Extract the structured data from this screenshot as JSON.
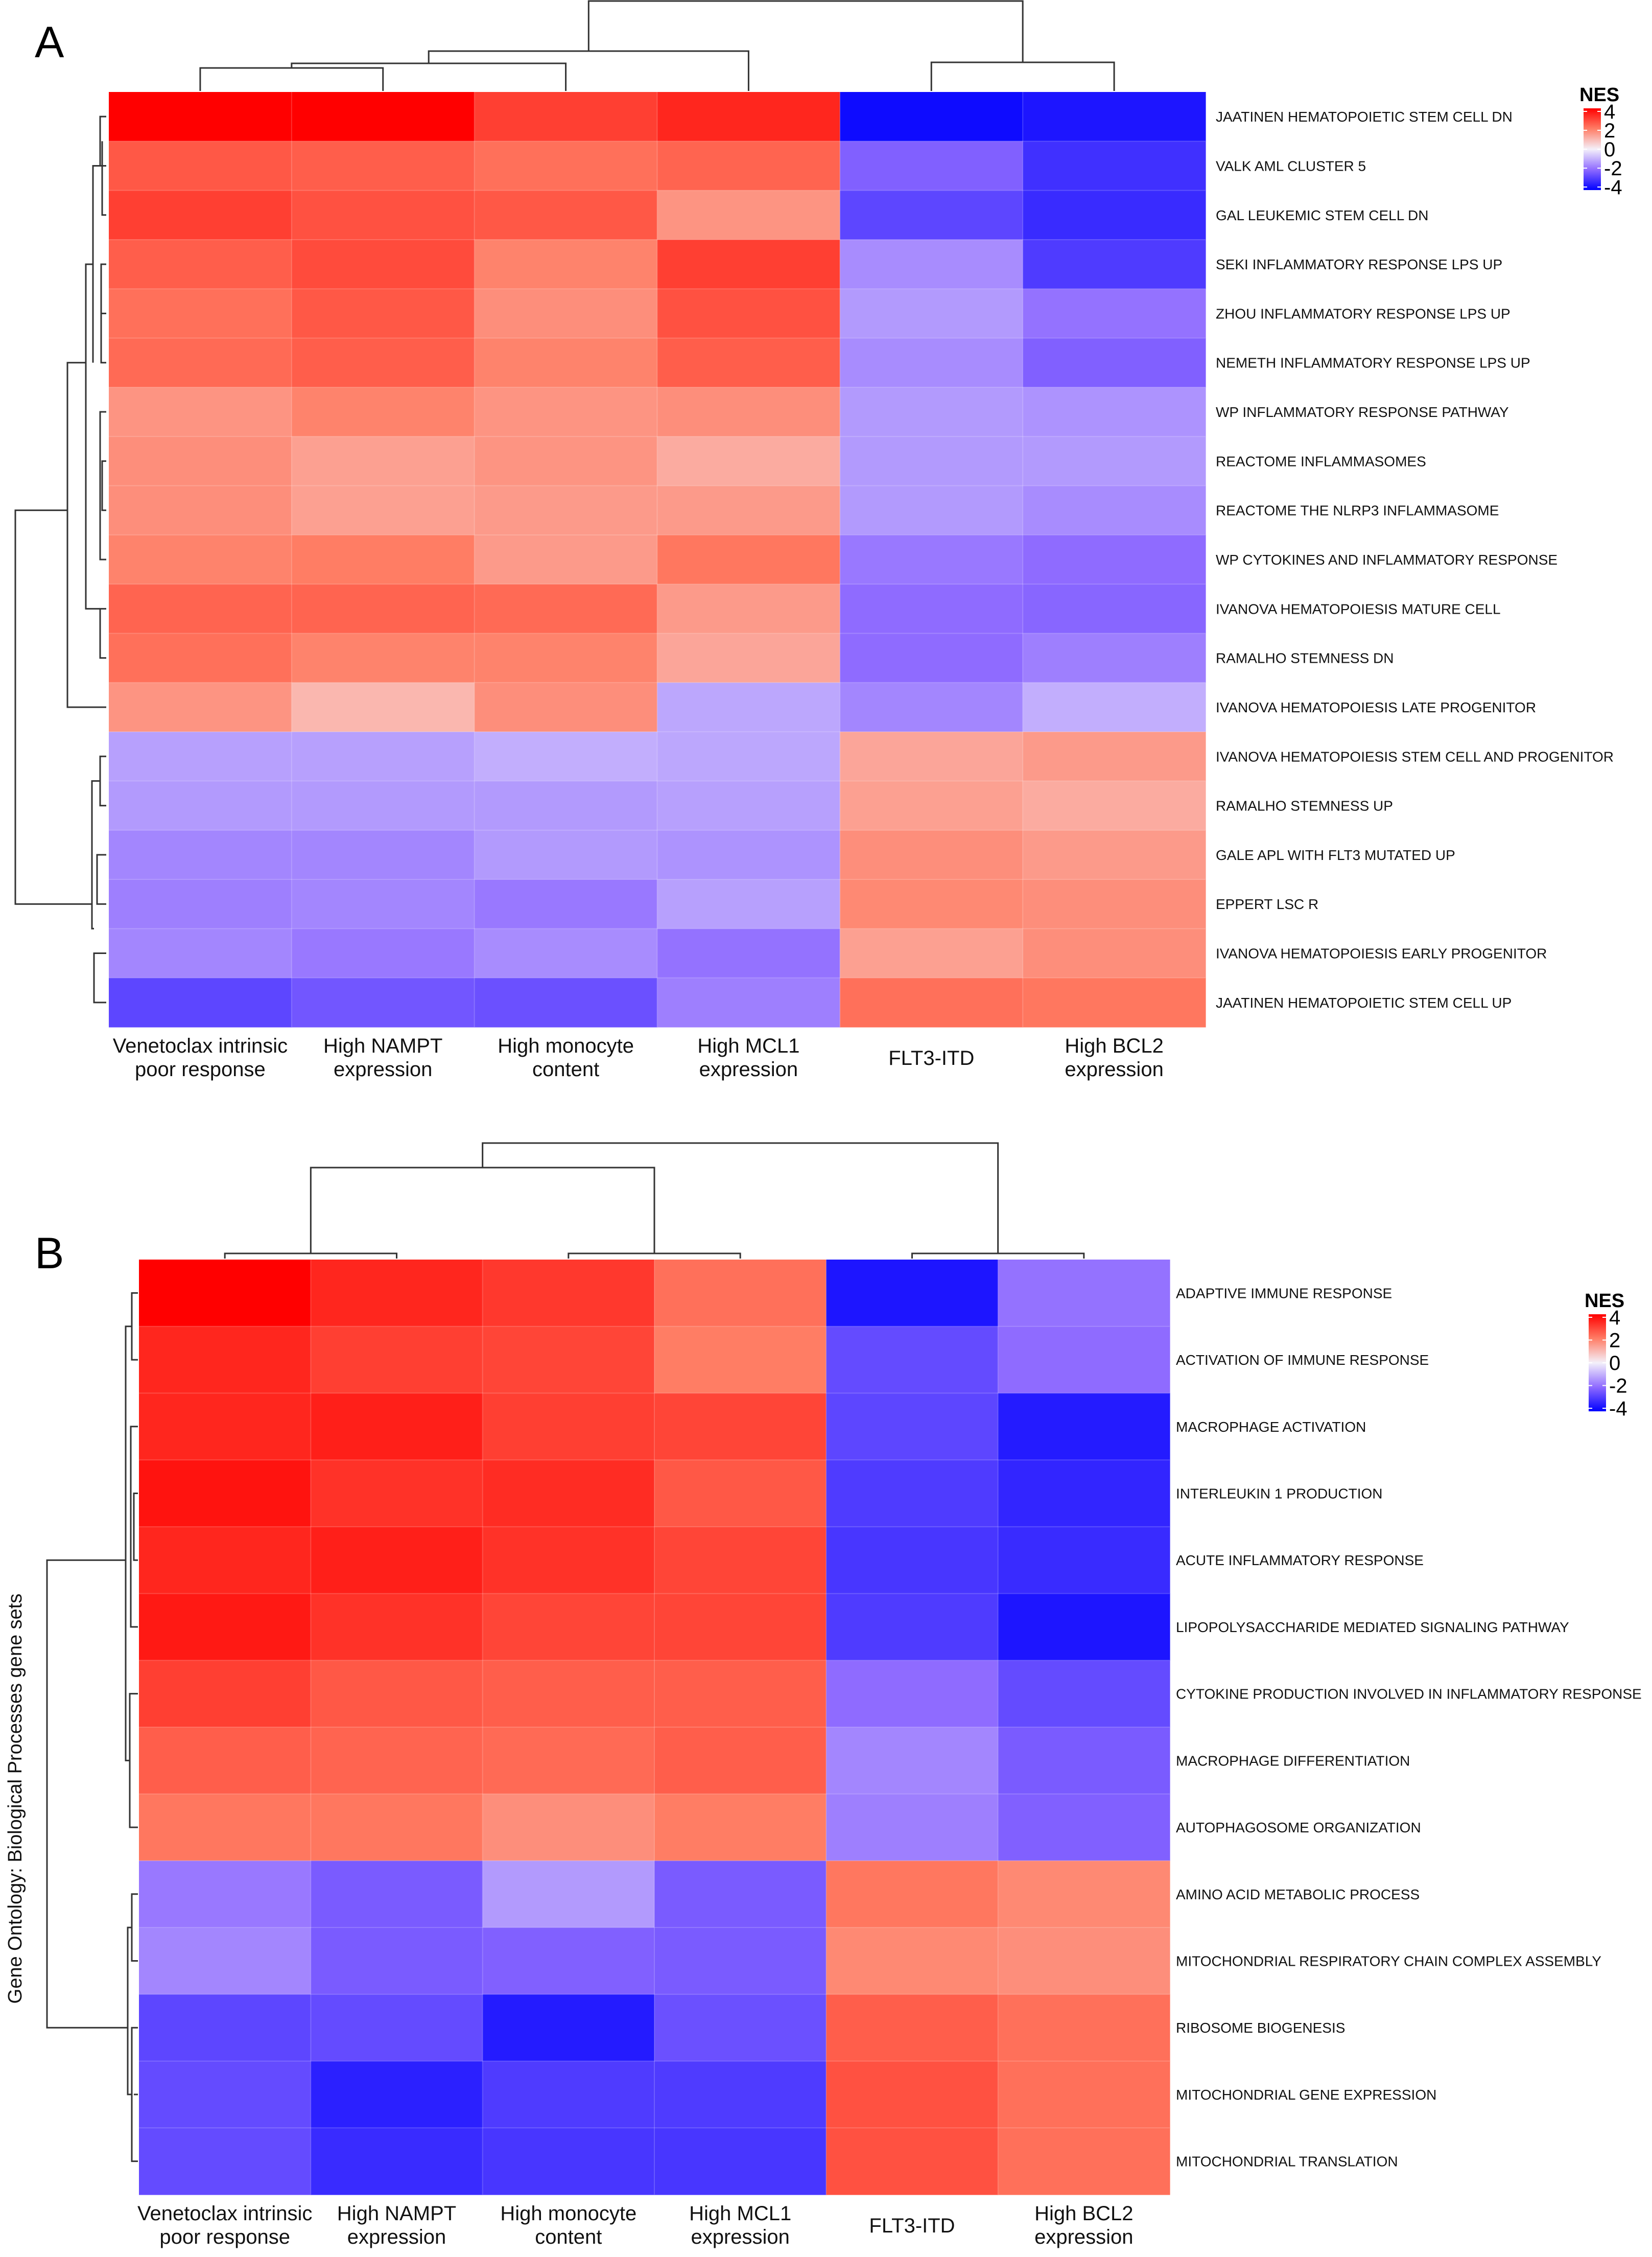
{
  "chart_data": [
    {
      "type": "heatmap",
      "panel": "A",
      "title": "",
      "ylabel": "",
      "columns": [
        "Venetoclax intrinsic\npoor response",
        "High NAMPT\nexpression",
        "High monocyte\ncontent",
        "High MCL1\nexpression",
        "FLT3-ITD",
        "High BCL2\nexpression"
      ],
      "rows": [
        "JAATINEN HEMATOPOIETIC STEM CELL DN",
        "VALK AML CLUSTER 5",
        "GAL LEUKEMIC STEM CELL DN",
        "SEKI INFLAMMATORY RESPONSE LPS UP",
        "ZHOU INFLAMMATORY RESPONSE LPS UP",
        "NEMETH INFLAMMATORY RESPONSE LPS UP",
        "WP INFLAMMATORY RESPONSE PATHWAY",
        "REACTOME INFLAMMASOMES",
        "REACTOME THE NLRP3 INFLAMMASOME",
        "WP CYTOKINES AND INFLAMMATORY RESPONSE",
        "IVANOVA HEMATOPOIESIS MATURE CELL",
        "RAMALHO STEMNESS DN",
        "IVANOVA HEMATOPOIESIS LATE PROGENITOR",
        "IVANOVA HEMATOPOIESIS STEM CELL AND PROGENITOR",
        "RAMALHO STEMNESS UP",
        "GALE APL WITH FLT3 MUTATED UP",
        "EPPERT LSC R",
        "IVANOVA HEMATOPOIESIS EARLY PROGENITOR",
        "JAATINEN HEMATOPOIETIC STEM CELL UP"
      ],
      "values": [
        [
          4.0,
          4.0,
          3.0,
          3.4,
          -3.8,
          -3.6
        ],
        [
          2.6,
          2.5,
          2.2,
          2.4,
          -2.2,
          -3.1
        ],
        [
          3.0,
          2.7,
          2.6,
          1.6,
          -2.7,
          -3.2
        ],
        [
          2.5,
          2.8,
          1.9,
          3.0,
          -1.5,
          -2.9
        ],
        [
          2.2,
          2.6,
          1.7,
          2.7,
          -1.3,
          -1.9
        ],
        [
          2.3,
          2.5,
          1.9,
          2.5,
          -1.5,
          -2.2
        ],
        [
          1.6,
          1.9,
          1.6,
          1.7,
          -1.3,
          -1.4
        ],
        [
          1.7,
          1.4,
          1.6,
          1.2,
          -1.3,
          -1.3
        ],
        [
          1.7,
          1.4,
          1.5,
          1.5,
          -1.3,
          -1.5
        ],
        [
          1.9,
          2.0,
          1.5,
          2.1,
          -1.8,
          -2.0
        ],
        [
          2.4,
          2.4,
          2.3,
          1.5,
          -2.0,
          -2.1
        ],
        [
          2.2,
          1.9,
          1.9,
          1.3,
          -2.0,
          -1.7
        ],
        [
          1.6,
          1.0,
          1.7,
          -1.1,
          -1.6,
          -1.0
        ],
        [
          -1.2,
          -1.2,
          -1.0,
          -1.1,
          1.3,
          1.5
        ],
        [
          -1.3,
          -1.3,
          -1.3,
          -1.2,
          1.4,
          1.2
        ],
        [
          -1.6,
          -1.6,
          -1.3,
          -1.4,
          1.7,
          1.5
        ],
        [
          -1.7,
          -1.6,
          -1.8,
          -1.2,
          1.8,
          1.7
        ],
        [
          -1.6,
          -1.8,
          -1.5,
          -1.9,
          1.4,
          1.7
        ],
        [
          -2.7,
          -2.4,
          -2.5,
          -1.7,
          2.2,
          2.1
        ]
      ],
      "legend": {
        "title": "NES",
        "ticks": [
          "4",
          "2",
          "0",
          "-2",
          "-4"
        ],
        "range": [
          -4,
          4
        ],
        "placement": "top-right"
      },
      "color_scale": {
        "low": "#0000ff",
        "mid": "#ffffff",
        "high": "#ff0000"
      }
    },
    {
      "type": "heatmap",
      "panel": "B",
      "title": "",
      "ylabel": "Gene Ontology: Biological Processes gene sets",
      "columns": [
        "Venetoclax intrinsic\npoor response",
        "High NAMPT\nexpression",
        "High monocyte\ncontent",
        "High MCL1\nexpression",
        "FLT3-ITD",
        "High BCL2\nexpression"
      ],
      "rows": [
        "ADAPTIVE IMMUNE RESPONSE",
        "ACTIVATION OF IMMUNE RESPONSE",
        "MACROPHAGE ACTIVATION",
        "INTERLEUKIN 1 PRODUCTION",
        "ACUTE INFLAMMATORY RESPONSE",
        "LIPOPOLYSACCHARIDE MEDIATED SIGNALING PATHWAY",
        "CYTOKINE PRODUCTION INVOLVED IN INFLAMMATORY RESPONSE",
        "MACROPHAGE DIFFERENTIATION",
        "AUTOPHAGOSOME ORGANIZATION",
        "AMINO ACID METABOLIC PROCESS",
        "MITOCHONDRIAL RESPIRATORY CHAIN COMPLEX ASSEMBLY",
        "RIBOSOME BIOGENESIS",
        "MITOCHONDRIAL GENE EXPRESSION",
        "MITOCHONDRIAL TRANSLATION"
      ],
      "values": [
        [
          4.0,
          3.4,
          3.1,
          2.2,
          -3.6,
          -1.9
        ],
        [
          3.4,
          3.0,
          2.9,
          2.0,
          -2.6,
          -2.0
        ],
        [
          3.4,
          3.5,
          3.0,
          2.9,
          -2.7,
          -3.5
        ],
        [
          3.7,
          3.2,
          3.3,
          2.6,
          -2.9,
          -3.3
        ],
        [
          3.4,
          3.5,
          3.2,
          2.9,
          -3.0,
          -3.2
        ],
        [
          3.6,
          3.2,
          2.9,
          2.9,
          -2.9,
          -3.6
        ],
        [
          3.0,
          2.6,
          2.5,
          2.5,
          -2.0,
          -2.6
        ],
        [
          2.5,
          2.4,
          2.3,
          2.5,
          -1.6,
          -2.3
        ],
        [
          2.1,
          2.1,
          1.7,
          2.0,
          -1.7,
          -2.2
        ],
        [
          -1.8,
          -2.3,
          -1.3,
          -2.3,
          2.1,
          1.8
        ],
        [
          -1.6,
          -2.3,
          -2.2,
          -2.3,
          1.8,
          1.7
        ],
        [
          -2.7,
          -2.6,
          -3.5,
          -2.5,
          2.5,
          2.2
        ],
        [
          -2.6,
          -3.4,
          -2.9,
          -2.9,
          2.7,
          2.2
        ],
        [
          -2.6,
          -3.2,
          -3.0,
          -3.0,
          2.7,
          2.2
        ]
      ],
      "legend": {
        "title": "NES",
        "ticks": [
          "4",
          "2",
          "0",
          "-2",
          "-4"
        ],
        "range": [
          -4,
          4
        ],
        "placement": "top-right"
      },
      "color_scale": {
        "low": "#0000ff",
        "mid": "#ffffff",
        "high": "#ff0000"
      }
    }
  ],
  "panels": {
    "a_letter": "A",
    "b_letter": "B"
  }
}
